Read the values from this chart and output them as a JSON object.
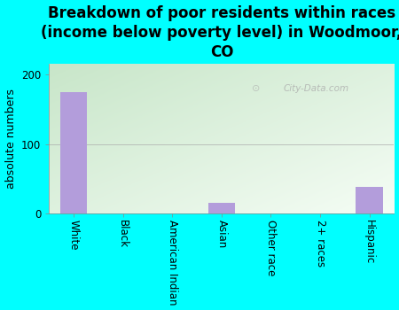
{
  "categories": [
    "White",
    "Black",
    "American Indian",
    "Asian",
    "Other race",
    "2+ races",
    "Hispanic"
  ],
  "values": [
    175,
    0,
    0,
    15,
    0,
    0,
    38
  ],
  "bar_color": "#b39ddb",
  "background_color": "#00ffff",
  "plot_bg_color_top_left": "#c8e6c9",
  "plot_bg_color_bottom_right": "#f5fdf5",
  "title": "Breakdown of poor residents within races\n(income below poverty level) in Woodmoor,\nCO",
  "ylabel": "absolute numbers",
  "ylim": [
    0,
    215
  ],
  "yticks": [
    0,
    100,
    200
  ],
  "watermark": "City-Data.com",
  "title_fontsize": 12,
  "ylabel_fontsize": 9,
  "tick_fontsize": 8.5,
  "bar_width": 0.55
}
